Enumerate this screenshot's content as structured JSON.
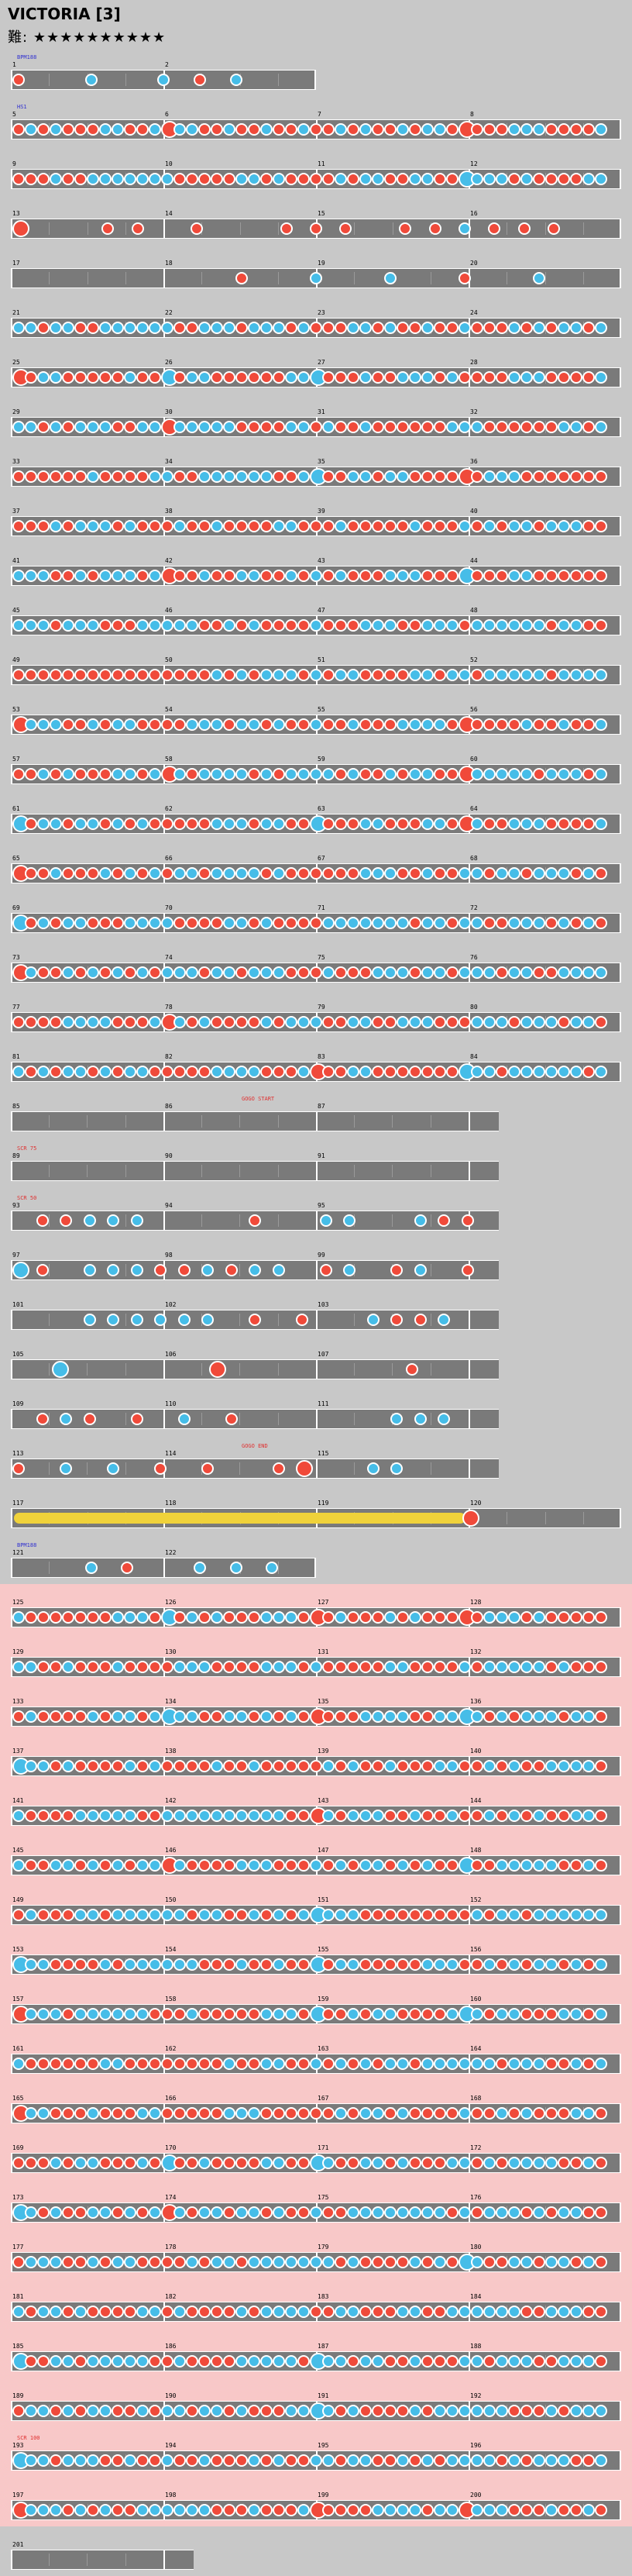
{
  "header": {
    "title": "VICTORIA [3]",
    "difficulty_label": "難:",
    "stars": "★★★★★★★★★★"
  },
  "labels": {
    "bpm_first": "BPM188",
    "hs_first": "HS1",
    "gogo_start": "GOGO START",
    "gogo_end": "GOGO END",
    "scroll_75": "SCR 75",
    "scroll_50": "SCR 50",
    "scroll_100": "SCR 100",
    "bpm_second": "BPM188"
  },
  "colors": {
    "background": "#c8c8c8",
    "track": "#7a7a7a",
    "don": "#f04a3a",
    "ka": "#46bde8",
    "gogo_row": "#f8c8c8"
  }
}
